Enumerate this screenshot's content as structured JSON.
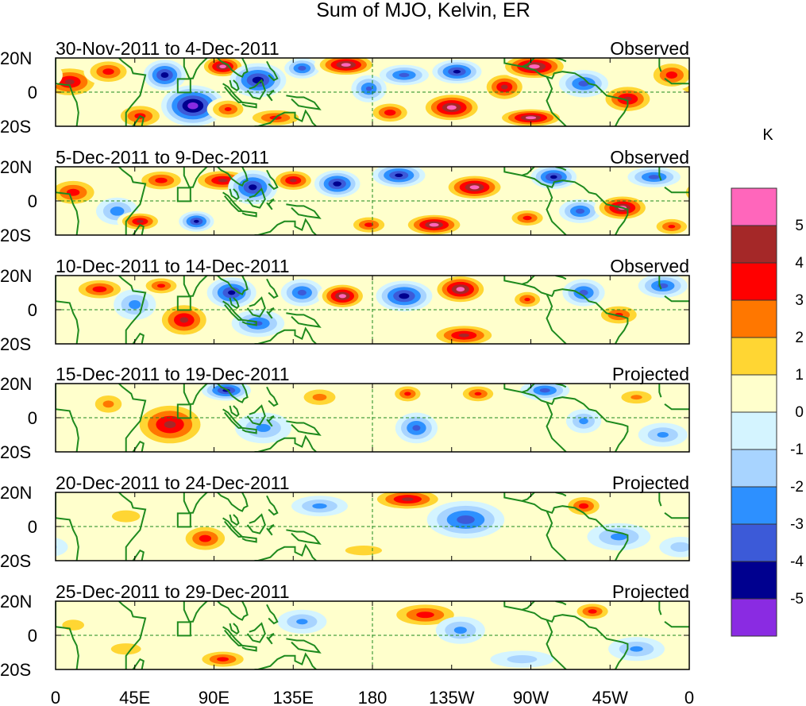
{
  "chart_data": {
    "type": "heatmap",
    "title": "Sum of MJO, Kelvin, ER",
    "x_tick_labels": [
      "0",
      "45E",
      "90E",
      "135E",
      "180",
      "135W",
      "90W",
      "45W",
      "0"
    ],
    "y_tick_labels": [
      "20N",
      "0",
      "20S"
    ],
    "x_range_deg_east": [
      0,
      360
    ],
    "y_range_deg": [
      -20,
      20
    ],
    "colorbar": {
      "unit": "K",
      "levels": [
        "5",
        "4",
        "3",
        "2",
        "1",
        "0",
        "-1",
        "-2",
        "-3",
        "-4",
        "-5"
      ],
      "colors": [
        "#ff66bb",
        "#a52828",
        "#ff0000",
        "#ff7700",
        "#ffd633",
        "#ffffcc",
        "#d4f4ff",
        "#a8d4ff",
        "#2d90ff",
        "#3c5ad8",
        "#00008f",
        "#8a2be2"
      ]
    },
    "panels": [
      {
        "period": "30-Nov-2011 to 4-Dec-2011",
        "kind": "Observed",
        "anomalies": [
          {
            "lon": 8,
            "lat": 6,
            "rx": 18,
            "ry": 10,
            "val": 4.2
          },
          {
            "lon": 30,
            "lat": 12,
            "rx": 14,
            "ry": 8,
            "val": 3.5
          },
          {
            "lon": 48,
            "lat": -14,
            "rx": 15,
            "ry": 8,
            "val": 3.4
          },
          {
            "lon": 62,
            "lat": 10,
            "rx": 12,
            "ry": 9,
            "val": -4.5
          },
          {
            "lon": 78,
            "lat": -8,
            "rx": 18,
            "ry": 12,
            "val": -5.6
          },
          {
            "lon": 95,
            "lat": 15,
            "rx": 13,
            "ry": 7,
            "val": 5.2
          },
          {
            "lon": 98,
            "lat": -10,
            "rx": 12,
            "ry": 7,
            "val": 3.2
          },
          {
            "lon": 115,
            "lat": 7,
            "rx": 16,
            "ry": 10,
            "val": -4.6
          },
          {
            "lon": 125,
            "lat": -15,
            "rx": 18,
            "ry": 6,
            "val": 3.3
          },
          {
            "lon": 140,
            "lat": 14,
            "rx": 10,
            "ry": 6,
            "val": -3.5
          },
          {
            "lon": 165,
            "lat": 16,
            "rx": 18,
            "ry": 7,
            "val": 5.4
          },
          {
            "lon": 178,
            "lat": 2,
            "rx": 10,
            "ry": 8,
            "val": -3.2
          },
          {
            "lon": 190,
            "lat": -12,
            "rx": 13,
            "ry": 7,
            "val": 3.6
          },
          {
            "lon": 198,
            "lat": 10,
            "rx": 14,
            "ry": 6,
            "val": -3.4
          },
          {
            "lon": 225,
            "lat": -9,
            "rx": 18,
            "ry": 9,
            "val": 5.3
          },
          {
            "lon": 228,
            "lat": 12,
            "rx": 14,
            "ry": 7,
            "val": -4.3
          },
          {
            "lon": 255,
            "lat": 3,
            "rx": 13,
            "ry": 9,
            "val": 4.2
          },
          {
            "lon": 272,
            "lat": 15,
            "rx": 20,
            "ry": 8,
            "val": 5.5
          },
          {
            "lon": 270,
            "lat": -15,
            "rx": 20,
            "ry": 6,
            "val": 5.2
          },
          {
            "lon": 300,
            "lat": 5,
            "rx": 14,
            "ry": 8,
            "val": -3.4
          },
          {
            "lon": 325,
            "lat": -4,
            "rx": 16,
            "ry": 9,
            "val": 4.3
          },
          {
            "lon": 350,
            "lat": 10,
            "rx": 14,
            "ry": 9,
            "val": 3.5
          }
        ]
      },
      {
        "period": "5-Dec-2011 to 9-Dec-2011",
        "kind": "Observed",
        "anomalies": [
          {
            "lon": 10,
            "lat": 5,
            "rx": 16,
            "ry": 9,
            "val": 3.5
          },
          {
            "lon": 35,
            "lat": -6,
            "rx": 12,
            "ry": 8,
            "val": -2.6
          },
          {
            "lon": 48,
            "lat": -12,
            "rx": 13,
            "ry": 6,
            "val": 4.2
          },
          {
            "lon": 60,
            "lat": 12,
            "rx": 15,
            "ry": 7,
            "val": 3.5
          },
          {
            "lon": 80,
            "lat": -12,
            "rx": 10,
            "ry": 6,
            "val": -4.3
          },
          {
            "lon": 95,
            "lat": 12,
            "rx": 18,
            "ry": 7,
            "val": 4.3
          },
          {
            "lon": 112,
            "lat": 8,
            "rx": 14,
            "ry": 10,
            "val": -4.4
          },
          {
            "lon": 135,
            "lat": 12,
            "rx": 13,
            "ry": 7,
            "val": 4.2
          },
          {
            "lon": 160,
            "lat": 10,
            "rx": 13,
            "ry": 8,
            "val": -4.5
          },
          {
            "lon": 178,
            "lat": -14,
            "rx": 12,
            "ry": 6,
            "val": 3.4
          },
          {
            "lon": 195,
            "lat": 15,
            "rx": 15,
            "ry": 7,
            "val": -4.3
          },
          {
            "lon": 215,
            "lat": -14,
            "rx": 18,
            "ry": 7,
            "val": 5.2
          },
          {
            "lon": 238,
            "lat": 8,
            "rx": 18,
            "ry": 8,
            "val": 5.3
          },
          {
            "lon": 268,
            "lat": -10,
            "rx": 12,
            "ry": 6,
            "val": 3.4
          },
          {
            "lon": 283,
            "lat": 14,
            "rx": 13,
            "ry": 7,
            "val": -4.3
          },
          {
            "lon": 298,
            "lat": -6,
            "rx": 12,
            "ry": 7,
            "val": -3.4
          },
          {
            "lon": 322,
            "lat": -4,
            "rx": 16,
            "ry": 8,
            "val": 5.2
          },
          {
            "lon": 340,
            "lat": 14,
            "rx": 15,
            "ry": 6,
            "val": -3.4
          },
          {
            "lon": 350,
            "lat": -15,
            "rx": 12,
            "ry": 6,
            "val": 3.2
          }
        ]
      },
      {
        "period": "10-Dec-2011 to 14-Dec-2011",
        "kind": "Observed",
        "anomalies": [
          {
            "lon": 25,
            "lat": 12,
            "rx": 16,
            "ry": 7,
            "val": 3.6
          },
          {
            "lon": 45,
            "lat": 3,
            "rx": 12,
            "ry": 9,
            "val": -2.4
          },
          {
            "lon": 60,
            "lat": 14,
            "rx": 12,
            "ry": 6,
            "val": 3.3
          },
          {
            "lon": 73,
            "lat": -6,
            "rx": 16,
            "ry": 11,
            "val": 4.3
          },
          {
            "lon": 100,
            "lat": 10,
            "rx": 14,
            "ry": 9,
            "val": -4.3
          },
          {
            "lon": 115,
            "lat": -8,
            "rx": 15,
            "ry": 8,
            "val": -3.2
          },
          {
            "lon": 140,
            "lat": 10,
            "rx": 12,
            "ry": 8,
            "val": -3.4
          },
          {
            "lon": 163,
            "lat": 8,
            "rx": 14,
            "ry": 8,
            "val": 5.3
          },
          {
            "lon": 198,
            "lat": 8,
            "rx": 16,
            "ry": 9,
            "val": -4.5
          },
          {
            "lon": 230,
            "lat": 12,
            "rx": 16,
            "ry": 9,
            "val": 5.4
          },
          {
            "lon": 232,
            "lat": -15,
            "rx": 20,
            "ry": 7,
            "val": 4.3
          },
          {
            "lon": 268,
            "lat": 6,
            "rx": 10,
            "ry": 6,
            "val": 3.2
          },
          {
            "lon": 300,
            "lat": 10,
            "rx": 12,
            "ry": 8,
            "val": -3.4
          },
          {
            "lon": 320,
            "lat": -3,
            "rx": 14,
            "ry": 7,
            "val": 3.2
          },
          {
            "lon": 345,
            "lat": 14,
            "rx": 14,
            "ry": 7,
            "val": -3.4
          }
        ]
      },
      {
        "period": "15-Dec-2011 to 19-Dec-2011",
        "kind": "Projected",
        "anomalies": [
          {
            "lon": 65,
            "lat": -4,
            "rx": 22,
            "ry": 14,
            "val": 4.3
          },
          {
            "lon": 30,
            "lat": 8,
            "rx": 12,
            "ry": 8,
            "val": 2.3
          },
          {
            "lon": 97,
            "lat": 16,
            "rx": 14,
            "ry": 6,
            "val": -4.3
          },
          {
            "lon": 118,
            "lat": -6,
            "rx": 16,
            "ry": 9,
            "val": -2.3
          },
          {
            "lon": 150,
            "lat": 12,
            "rx": 14,
            "ry": 7,
            "val": 2.4
          },
          {
            "lon": 200,
            "lat": 14,
            "rx": 10,
            "ry": 6,
            "val": 3.3
          },
          {
            "lon": 205,
            "lat": -6,
            "rx": 12,
            "ry": 9,
            "val": -3.3
          },
          {
            "lon": 240,
            "lat": 14,
            "rx": 12,
            "ry": 6,
            "val": 3.2
          },
          {
            "lon": 278,
            "lat": 16,
            "rx": 14,
            "ry": 6,
            "val": -3.4
          },
          {
            "lon": 300,
            "lat": -2,
            "rx": 10,
            "ry": 7,
            "val": -2.3
          },
          {
            "lon": 330,
            "lat": 12,
            "rx": 14,
            "ry": 6,
            "val": 2.2
          },
          {
            "lon": 345,
            "lat": -10,
            "rx": 14,
            "ry": 7,
            "val": -2.2
          }
        ]
      },
      {
        "period": "20-Dec-2011 to 24-Dec-2011",
        "kind": "Projected",
        "anomalies": [
          {
            "lon": 85,
            "lat": -7,
            "rx": 15,
            "ry": 9,
            "val": 3.5
          },
          {
            "lon": 40,
            "lat": 6,
            "rx": 16,
            "ry": 7,
            "val": 1.6
          },
          {
            "lon": 150,
            "lat": 12,
            "rx": 16,
            "ry": 6,
            "val": -2.3
          },
          {
            "lon": 200,
            "lat": 16,
            "rx": 22,
            "ry": 7,
            "val": 4.3
          },
          {
            "lon": 233,
            "lat": 4,
            "rx": 22,
            "ry": 11,
            "val": -3.5
          },
          {
            "lon": 300,
            "lat": 12,
            "rx": 12,
            "ry": 7,
            "val": 3.5
          },
          {
            "lon": 320,
            "lat": -6,
            "rx": 18,
            "ry": 8,
            "val": -2.3
          },
          {
            "lon": 175,
            "lat": -14,
            "rx": 22,
            "ry": 6,
            "val": 1.5
          },
          {
            "lon": 355,
            "lat": -12,
            "rx": 12,
            "ry": 6,
            "val": -1.5
          }
        ]
      },
      {
        "period": "25-Dec-2011 to 29-Dec-2011",
        "kind": "Projected",
        "anomalies": [
          {
            "lon": 95,
            "lat": -14,
            "rx": 16,
            "ry": 6,
            "val": 3.4
          },
          {
            "lon": 210,
            "lat": 12,
            "rx": 22,
            "ry": 8,
            "val": 3.5
          },
          {
            "lon": 230,
            "lat": 3,
            "rx": 14,
            "ry": 8,
            "val": -2.3
          },
          {
            "lon": 305,
            "lat": 14,
            "rx": 12,
            "ry": 6,
            "val": 3.4
          },
          {
            "lon": 140,
            "lat": 8,
            "rx": 14,
            "ry": 7,
            "val": -2.2
          },
          {
            "lon": 40,
            "lat": -8,
            "rx": 18,
            "ry": 7,
            "val": 1.5
          },
          {
            "lon": 330,
            "lat": -8,
            "rx": 16,
            "ry": 7,
            "val": -2.2
          },
          {
            "lon": 10,
            "lat": 6,
            "rx": 14,
            "ry": 7,
            "val": 1.4
          },
          {
            "lon": 265,
            "lat": -14,
            "rx": 18,
            "ry": 5,
            "val": -1.5
          }
        ]
      }
    ]
  }
}
